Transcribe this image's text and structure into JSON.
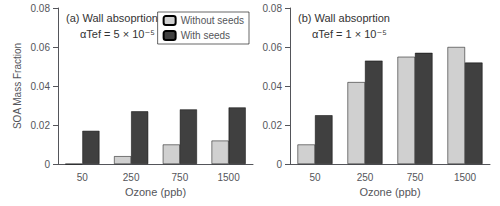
{
  "chart_data": [
    {
      "type": "bar",
      "title": "(a) Wall absoprtion",
      "annotations": [
        "αTef = 5 × 10⁻⁵"
      ],
      "categories": [
        "50",
        "250",
        "750",
        "1500"
      ],
      "series": [
        {
          "name": "Without seeds",
          "color": "#d0d0d0",
          "values": [
            0.0,
            0.004,
            0.01,
            0.012
          ]
        },
        {
          "name": "With seeds",
          "color": "#404040",
          "values": [
            0.017,
            0.027,
            0.028,
            0.029
          ]
        }
      ],
      "xlabel": "Ozone (ppb)",
      "ylabel": "SOA Mass Fraction",
      "ylim": [
        0,
        0.08
      ],
      "yticks": [
        0,
        0.02,
        0.04,
        0.06,
        0.08
      ],
      "grid": false,
      "legend": "upper right"
    },
    {
      "type": "bar",
      "title": "(b) Wall absoprtion",
      "annotations": [
        "αTef = 1 × 10⁻⁵"
      ],
      "categories": [
        "50",
        "250",
        "750",
        "1500"
      ],
      "series": [
        {
          "name": "Without seeds",
          "color": "#d0d0d0",
          "values": [
            0.01,
            0.042,
            0.055,
            0.06
          ]
        },
        {
          "name": "With seeds",
          "color": "#404040",
          "values": [
            0.025,
            0.053,
            0.057,
            0.052
          ]
        }
      ],
      "xlabel": "Ozone (ppb)",
      "ylim": [
        0,
        0.08
      ],
      "yticks": [
        0,
        0.02,
        0.04,
        0.06,
        0.08
      ],
      "grid": false,
      "legend": false
    }
  ]
}
